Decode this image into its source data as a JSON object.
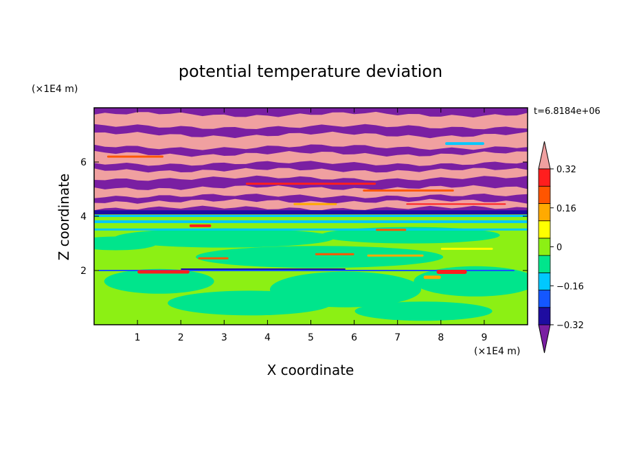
{
  "chart_data": {
    "type": "heatmap",
    "title": "potential temperature deviation",
    "xlabel": "X coordinate",
    "ylabel": "Z coordinate",
    "x_unit": "(×1E4 m)",
    "y_unit": "(×1E4 m)",
    "time_label": "t=6.8184e+06",
    "xlim": [
      0,
      10
    ],
    "ylim": [
      0,
      8
    ],
    "x_ticks": [
      1,
      2,
      3,
      4,
      5,
      6,
      7,
      8,
      9
    ],
    "x_tick_labels": [
      "1",
      "2",
      "3",
      "4",
      "5",
      "6",
      "7",
      "8",
      "9"
    ],
    "y_ticks": [
      2,
      4,
      6
    ],
    "y_tick_labels": [
      "2",
      "4",
      "6"
    ],
    "colorbar": {
      "levels": [
        -0.4,
        -0.32,
        -0.24,
        -0.16,
        -0.08,
        0,
        0.08,
        0.16,
        0.24,
        0.32,
        0.4
      ],
      "labeled_levels": [
        0.32,
        0.16,
        0,
        -0.16,
        -0.32
      ],
      "labels": [
        "0.32",
        "0.16",
        "0",
        "−0.16",
        "−0.32"
      ],
      "colors": [
        "#7a1fa2",
        "#1e0ca0",
        "#1457ff",
        "#00c8ff",
        "#00e58c",
        "#8cf014",
        "#ffff00",
        "#ffaa00",
        "#ff5500",
        "#ff1e1e",
        "#f0a0a0"
      ],
      "extend": "both"
    },
    "field_description": {
      "upper_region_z": [
        4.2,
        8.0
      ],
      "upper_pattern": "alternating bands of low (purple) and high (pink) values",
      "lower_region_z": [
        0,
        4.2
      ],
      "lower_pattern": "near-zero values (green / yellow-green) with scattered positive streaks"
    }
  }
}
